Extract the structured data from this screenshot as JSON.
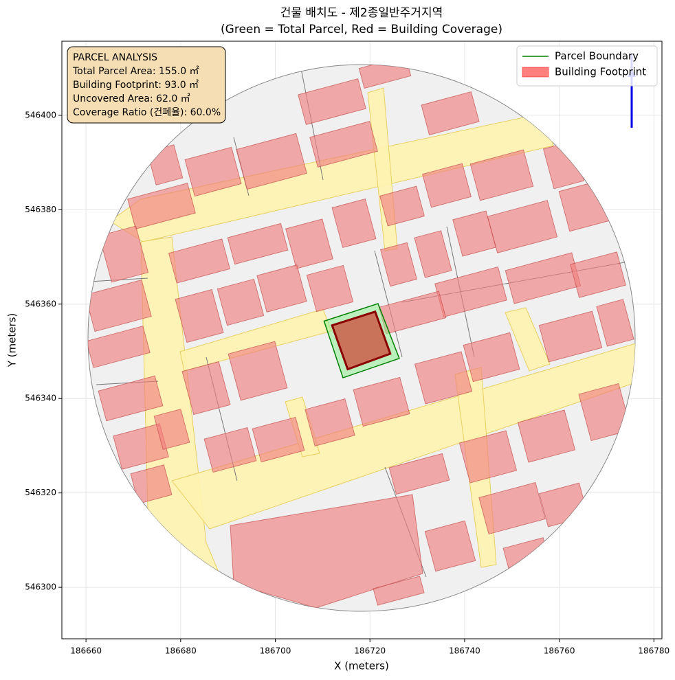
{
  "chart_data": {
    "type": "site-plan",
    "title": "건물 배치도 - 제2종일반주거지역",
    "subtitle": "(Green = Total Parcel, Red = Building Coverage)",
    "xlabel": "X (meters)",
    "ylabel": "Y (meters)",
    "xlim": [
      186654.9,
      186781.7
    ],
    "ylim": [
      546289.1,
      546415.7
    ],
    "xticks": [
      186660,
      186680,
      186700,
      186720,
      186740,
      186760,
      186780
    ],
    "yticks": [
      546300,
      546320,
      546340,
      546360,
      546380,
      546400
    ],
    "grid": true,
    "legend": "upper right",
    "series": [
      {
        "name": "Parcel Boundary",
        "color": "#008000",
        "x": [
          186710.3,
          186721.7,
          186726.2,
          186714.3
        ],
        "y": [
          546356.4,
          546360.1,
          546348.5,
          546344.4
        ]
      },
      {
        "name": "Building Footprint",
        "color": "#ff0000",
        "x": [
          186712.0,
          186721.1,
          186724.3,
          186715.3
        ],
        "y": [
          546355.5,
          546358.4,
          546349.5,
          546346.2
        ]
      }
    ],
    "annotation": [
      "PARCEL ANALYSIS",
      "Total Parcel Area: 155.0 ㎡",
      "Building Footprint: 93.0 ㎡",
      "Uncovered Area: 62.0 ㎡",
      "Coverage Ratio (건폐율): 60.0%"
    ]
  }
}
